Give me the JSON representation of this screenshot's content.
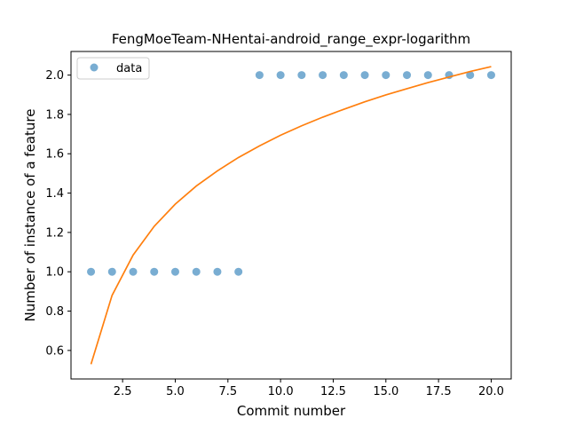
{
  "chart_data": {
    "type": "scatter",
    "title": "FengMoeTeam-NHentai-android_range_expr-logarithm",
    "xlabel": "Commit number",
    "ylabel": "Number of instance of a feature",
    "xlim": [
      0.05,
      20.95
    ],
    "ylim": [
      0.455,
      2.12
    ],
    "xticks": [
      2.5,
      5.0,
      7.5,
      10.0,
      12.5,
      15.0,
      17.5,
      20.0
    ],
    "xtick_labels": [
      "2.5",
      "5.0",
      "7.5",
      "10.0",
      "12.5",
      "15.0",
      "17.5",
      "20.0"
    ],
    "yticks": [
      0.6,
      0.8,
      1.0,
      1.2,
      1.4,
      1.6,
      1.8,
      2.0
    ],
    "ytick_labels": [
      "0.6",
      "0.8",
      "1.0",
      "1.2",
      "1.4",
      "1.6",
      "1.8",
      "2.0"
    ],
    "grid": false,
    "legend_position": "top-left",
    "series": [
      {
        "name": "data",
        "kind": "scatter",
        "color": "#1f77b4",
        "x": [
          1,
          2,
          3,
          4,
          5,
          6,
          7,
          8,
          9,
          10,
          11,
          12,
          13,
          14,
          15,
          16,
          17,
          18,
          19,
          20
        ],
        "y": [
          1,
          1,
          1,
          1,
          1,
          1,
          1,
          1,
          2,
          2,
          2,
          2,
          2,
          2,
          2,
          2,
          2,
          2,
          2,
          2
        ]
      },
      {
        "kind": "line",
        "color": "#ff7f0e",
        "x": [
          1,
          2,
          3,
          4,
          5,
          6,
          7,
          8,
          9,
          10,
          11,
          12,
          13,
          14,
          15,
          16,
          17,
          18,
          19,
          20
        ],
        "y": [
          0.53,
          0.88,
          1.085,
          1.231,
          1.344,
          1.436,
          1.513,
          1.581,
          1.64,
          1.694,
          1.742,
          1.786,
          1.826,
          1.864,
          1.899,
          1.931,
          1.962,
          1.99,
          2.018,
          2.043
        ]
      }
    ]
  }
}
